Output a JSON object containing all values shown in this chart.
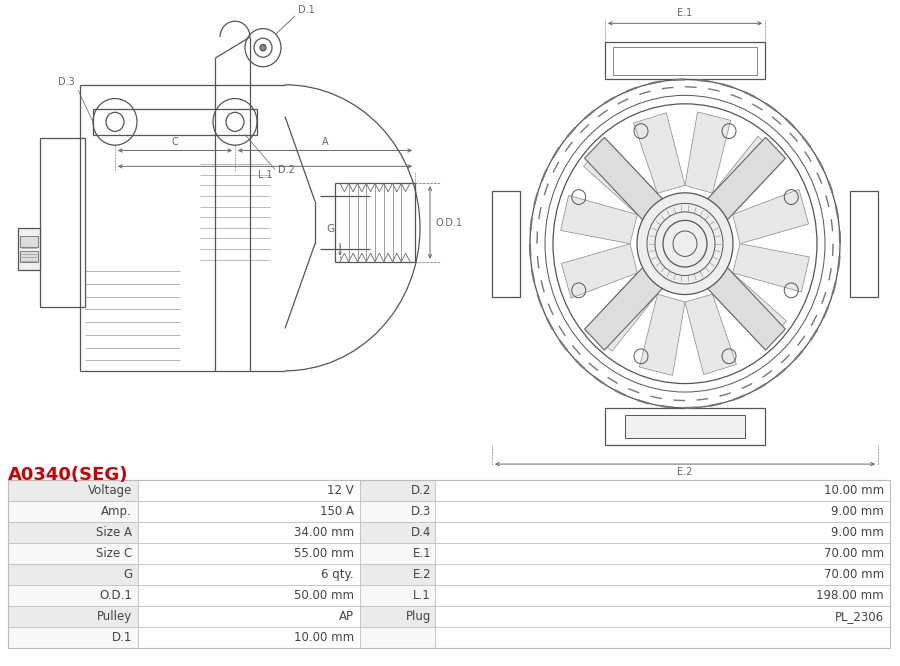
{
  "title": "A0340(SEG)",
  "title_color": "#cc0000",
  "background_color": "#ffffff",
  "table_data": {
    "left_col": [
      "Voltage",
      "Amp.",
      "Size A",
      "Size C",
      "G",
      "O.D.1",
      "Pulley",
      "D.1"
    ],
    "left_val": [
      "12 V",
      "150 A",
      "34.00 mm",
      "55.00 mm",
      "6 qty.",
      "50.00 mm",
      "AP",
      "10.00 mm"
    ],
    "right_col": [
      "D.2",
      "D.3",
      "D.4",
      "E.1",
      "E.2",
      "L.1",
      "Plug",
      ""
    ],
    "right_val": [
      "10.00 mm",
      "9.00 mm",
      "9.00 mm",
      "70.00 mm",
      "70.00 mm",
      "198.00 mm",
      "PL_2306",
      ""
    ]
  },
  "row_colors": [
    "#ebebeb",
    "#f8f8f8"
  ],
  "border_color": "#bbbbbb",
  "text_color": "#444444",
  "line_color": "#555555",
  "dim_color": "#666666"
}
